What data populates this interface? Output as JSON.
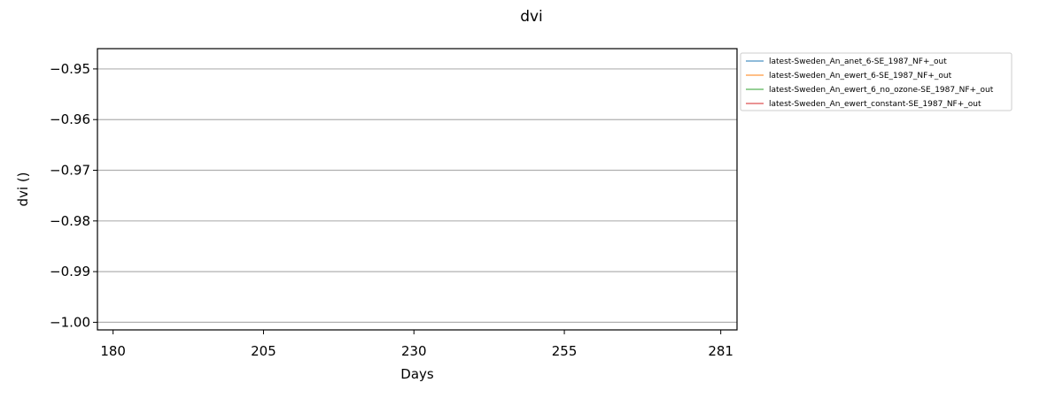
{
  "chart_data": {
    "type": "line",
    "title": "dvi",
    "xlabel": "Days",
    "ylabel": "dvi ()",
    "x_ticks": [
      180,
      205,
      230,
      255,
      281
    ],
    "y_ticks": [
      -0.95,
      -0.96,
      -0.97,
      -0.98,
      -0.99,
      -1.0
    ],
    "y_tick_labels": [
      "−0.95",
      "−0.96",
      "−0.97",
      "−0.98",
      "−0.99",
      "−1.00"
    ],
    "xlim": [
      177.4,
      283.7
    ],
    "ylim": [
      -1.0015,
      -0.946
    ],
    "grid": "horizontal",
    "legend_position": "outside-right",
    "series": [
      {
        "name": "latest-Sweden_An_anet_6-SE_1987_NF+_out",
        "color": "#1f77b4",
        "x": [],
        "y": []
      },
      {
        "name": "latest-Sweden_An_ewert_6-SE_1987_NF+_out",
        "color": "#ff7f0e",
        "x": [],
        "y": []
      },
      {
        "name": "latest-Sweden_An_ewert_6_no_ozone-SE_1987_NF+_out",
        "color": "#2ca02c",
        "x": [],
        "y": []
      },
      {
        "name": "latest-Sweden_An_ewert_constant-SE_1987_NF+_out",
        "color": "#d62728",
        "x": [],
        "y": []
      }
    ]
  }
}
